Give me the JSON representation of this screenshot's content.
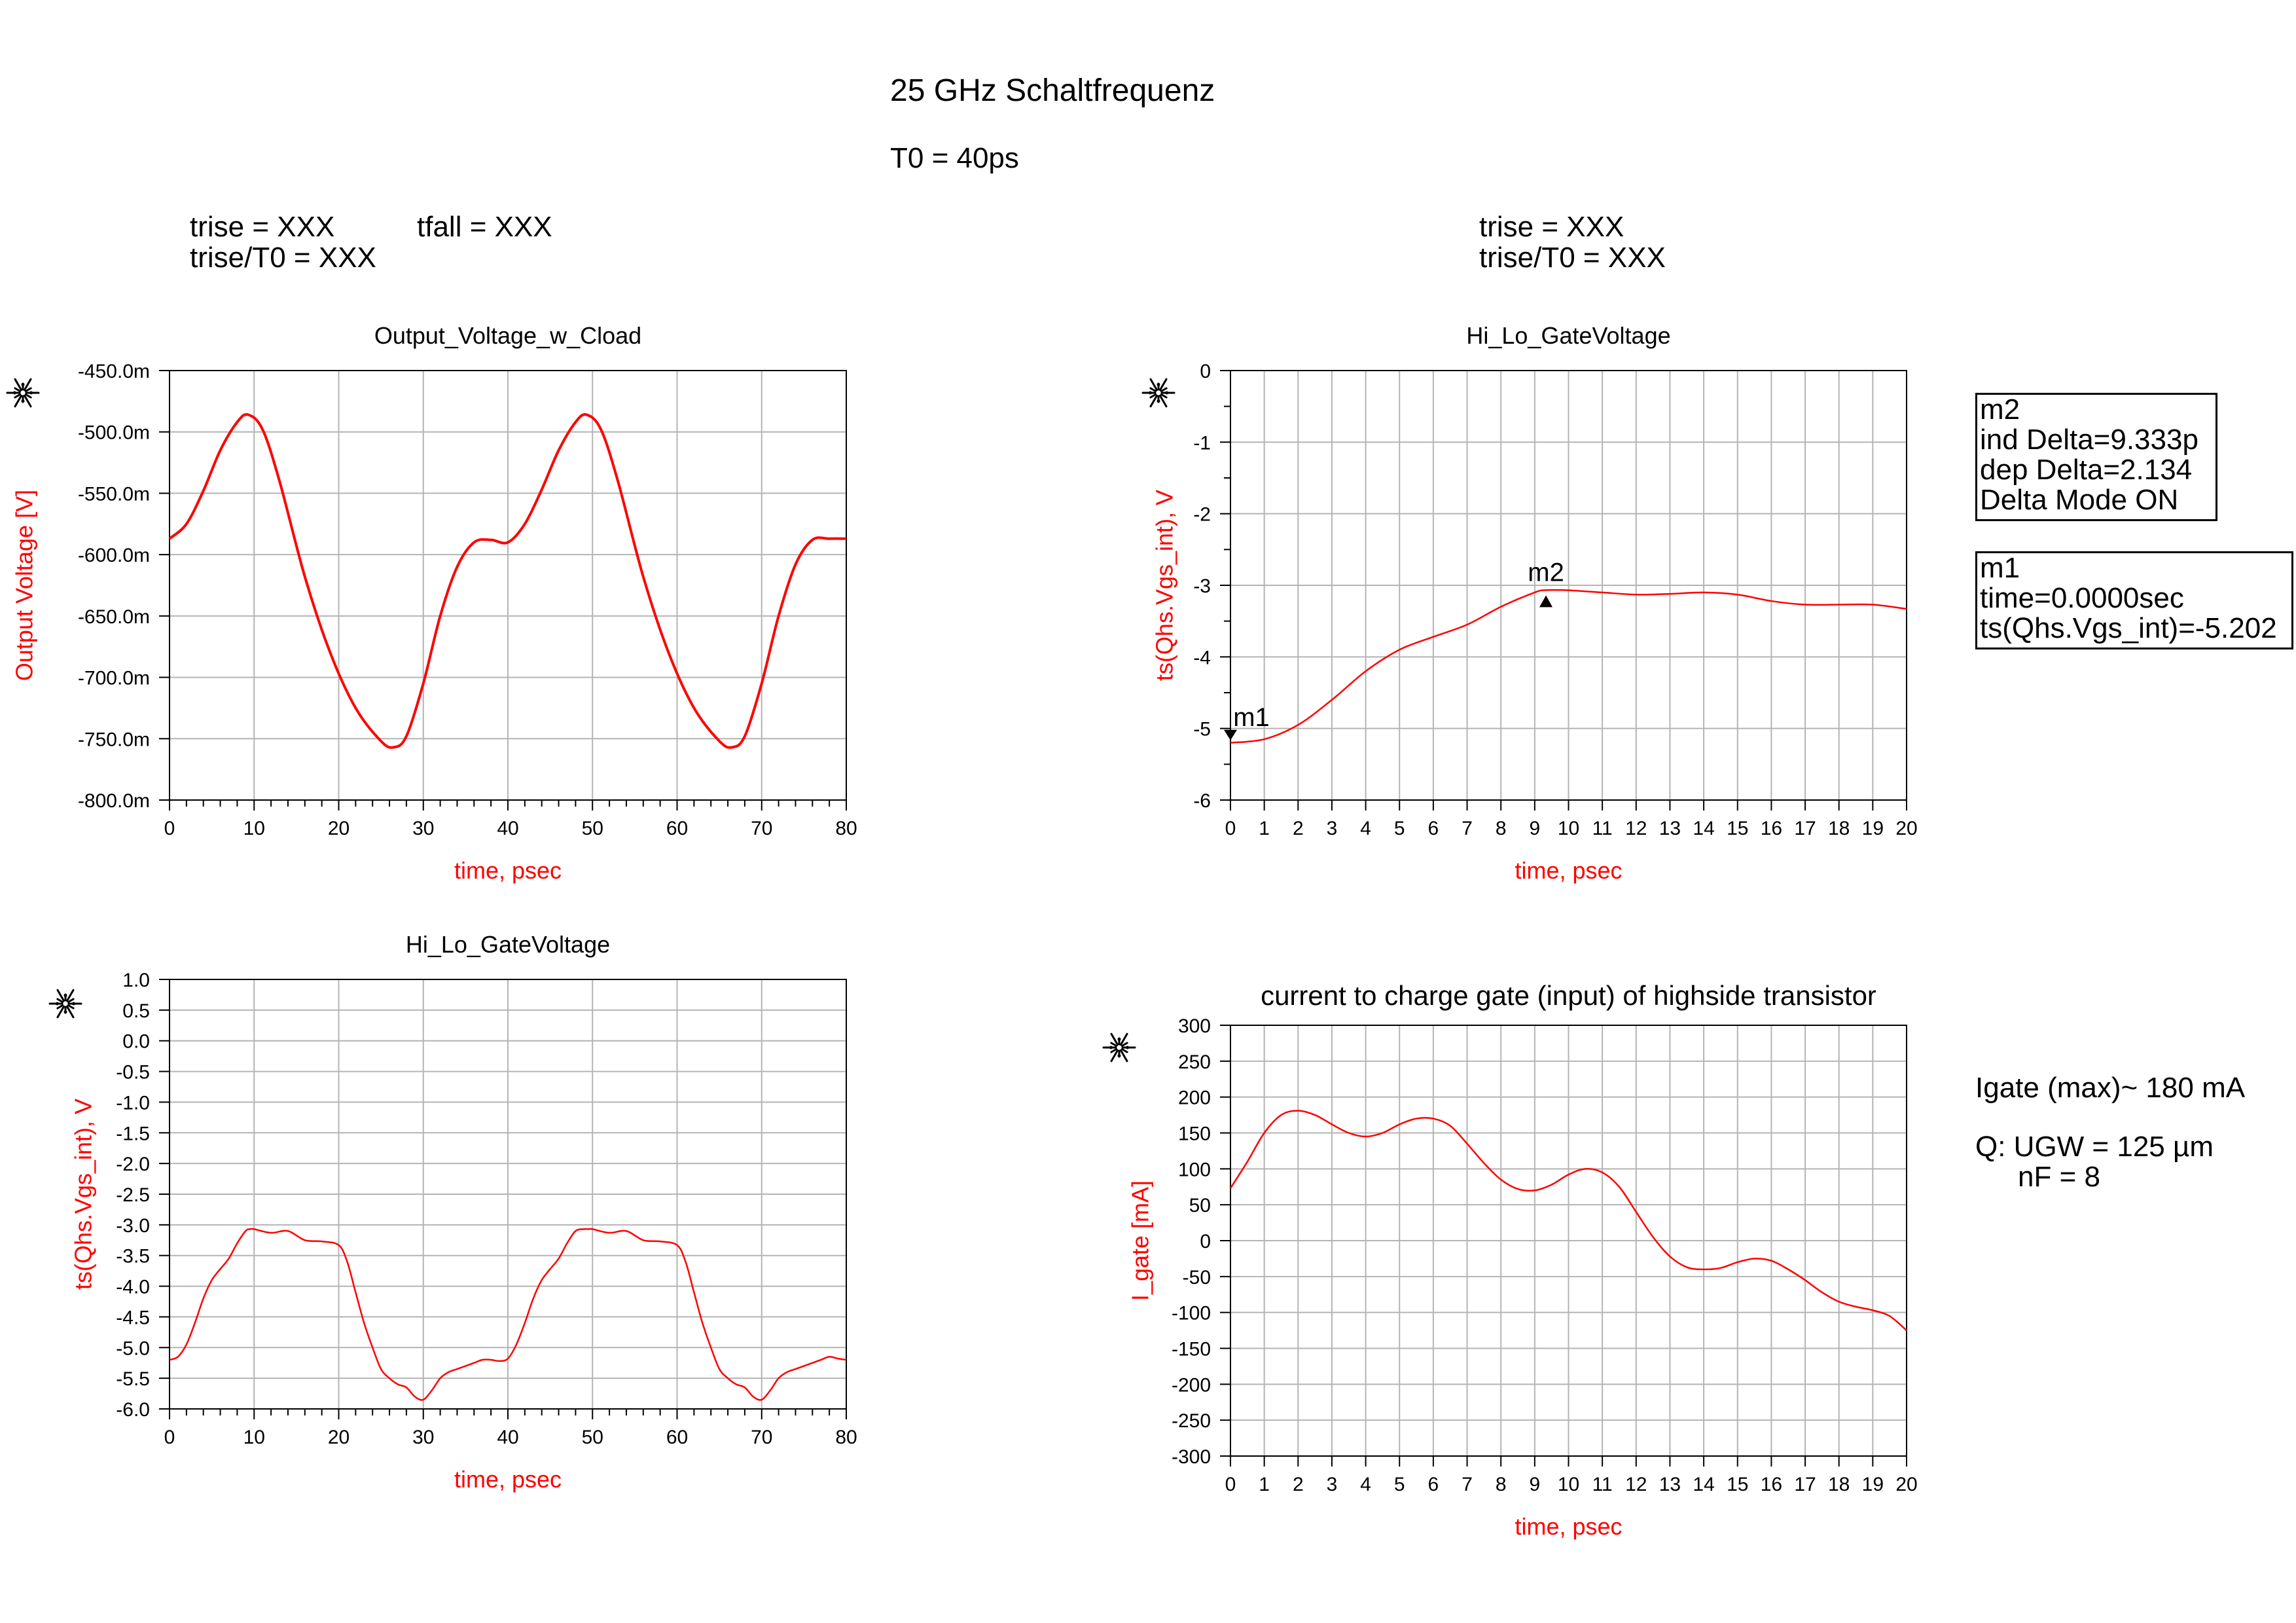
{
  "page": {
    "title": "25 GHz Schaltfrequenz",
    "subtitle": "T0 = 40ps",
    "left_params": {
      "trise": "trise = XXX",
      "tfall": "tfall = XXX",
      "ratio": "trise/T0 = XXX"
    },
    "right_params": {
      "trise": "trise = XXX",
      "ratio": "trise/T0 = XXX"
    },
    "marker_m2": [
      "m2",
      "ind Delta=9.333p",
      "dep Delta=2.134",
      "Delta Mode ON"
    ],
    "marker_m1": [
      "m1",
      "time=0.0000sec",
      "ts(Qhs.Vgs_int)=-5.202"
    ],
    "gate_note": {
      "igate": "Igate (max)~ 180 mA",
      "ugw": "Q: UGW = 125 µm",
      "nf": "nF = 8"
    },
    "colors": {
      "trace": "#ff0000",
      "axis": "#000000",
      "grid": "#b4b4b4",
      "label": "#ff0000"
    },
    "icon": "agilent-starburst-icon"
  },
  "chart_data": [
    {
      "id": "output-voltage",
      "type": "line",
      "title": "Output_Voltage_w_Cload",
      "xlabel": "time, psec",
      "ylabel": "Output Voltage [V]",
      "xlim": [
        0,
        80
      ],
      "ylim": [
        -800,
        -450
      ],
      "xticks": [
        0,
        10,
        20,
        30,
        40,
        50,
        60,
        70,
        80
      ],
      "yticks": [
        -800,
        -750,
        -700,
        -650,
        -600,
        -550,
        -500,
        -450
      ],
      "ytick_labels": [
        "-800.0m",
        "-750.0m",
        "-700.0m",
        "-650.0m",
        "-600.0m",
        "-550.0m",
        "-500.0m",
        "-450.0m"
      ],
      "x_minor_per_major": 5,
      "y_minor_per_major": 1,
      "series": [
        {
          "x": [
            0,
            2,
            4,
            6,
            8,
            9.3,
            11,
            13,
            16,
            19,
            22,
            25,
            26.5,
            28,
            30,
            32,
            34,
            36,
            38,
            40,
            42,
            44,
            46,
            48,
            49.3,
            51,
            53,
            56,
            59,
            62,
            65,
            66.5,
            68,
            70,
            72,
            74,
            76,
            78,
            80
          ],
          "y": [
            -587,
            -575,
            -548,
            -515,
            -492,
            -486,
            -498,
            -540,
            -618,
            -680,
            -725,
            -752,
            -757,
            -748,
            -705,
            -650,
            -610,
            -590,
            -588,
            -590,
            -575,
            -547,
            -515,
            -492,
            -486,
            -498,
            -540,
            -618,
            -680,
            -725,
            -752,
            -757,
            -748,
            -705,
            -650,
            -608,
            -588,
            -587,
            -587
          ]
        }
      ]
    },
    {
      "id": "gate-voltage-zoom",
      "type": "line",
      "title": "Hi_Lo_GateVoltage",
      "xlabel": "time, psec",
      "ylabel": "ts(Qhs.Vgs_int), V",
      "xlim": [
        0,
        20
      ],
      "ylim": [
        -6,
        0
      ],
      "xticks": [
        0,
        1,
        2,
        3,
        4,
        5,
        6,
        7,
        8,
        9,
        10,
        11,
        12,
        13,
        14,
        15,
        16,
        17,
        18,
        19,
        20
      ],
      "yticks": [
        -6,
        -5,
        -4,
        -3,
        -2,
        -1,
        0
      ],
      "ytick_labels": [
        "-6",
        "-5",
        "-4",
        "-3",
        "-2",
        "-1",
        "0"
      ],
      "x_minor_per_major": 1,
      "y_minor_per_major": 2,
      "markers": [
        {
          "name": "m1",
          "x": 0,
          "y": -5.202,
          "dir": "down"
        },
        {
          "name": "m2",
          "x": 9.333,
          "y": -3.068,
          "dir": "up"
        }
      ],
      "series": [
        {
          "x": [
            0,
            1,
            2,
            3,
            4,
            5,
            6,
            7,
            8,
            9,
            9.333,
            10,
            11,
            12,
            13,
            14,
            15,
            16,
            17,
            18,
            19,
            20
          ],
          "y": [
            -5.2,
            -5.15,
            -4.95,
            -4.6,
            -4.2,
            -3.9,
            -3.72,
            -3.55,
            -3.3,
            -3.1,
            -3.068,
            -3.07,
            -3.1,
            -3.13,
            -3.12,
            -3.1,
            -3.13,
            -3.22,
            -3.27,
            -3.27,
            -3.27,
            -3.33
          ]
        }
      ]
    },
    {
      "id": "gate-voltage-full",
      "type": "line",
      "title": "Hi_Lo_GateVoltage",
      "xlabel": "time, psec",
      "ylabel": "ts(Qhs.Vgs_int), V",
      "xlim": [
        0,
        80
      ],
      "ylim": [
        -6,
        1
      ],
      "xticks": [
        0,
        10,
        20,
        30,
        40,
        50,
        60,
        70,
        80
      ],
      "yticks": [
        -6,
        -5.5,
        -5,
        -4.5,
        -4,
        -3.5,
        -3,
        -2.5,
        -2,
        -1.5,
        -1,
        -0.5,
        0,
        0.5,
        1
      ],
      "ytick_labels": [
        "-6.0",
        "-5.5",
        "-5.0",
        "-4.5",
        "-4.0",
        "-3.5",
        "-3.0",
        "-2.5",
        "-2.0",
        "-1.5",
        "-1.0",
        "-0.5",
        "0.0",
        "0.5",
        "1.0"
      ],
      "x_minor_per_major": 5,
      "y_minor_per_major": 1,
      "series": [
        {
          "x": [
            0,
            1,
            2,
            3,
            4,
            5,
            6,
            7,
            8,
            9,
            9.5,
            10,
            12,
            14,
            16,
            18,
            20,
            21,
            22,
            23,
            24,
            25,
            26,
            27,
            28,
            29,
            30,
            31,
            32,
            33,
            34,
            35,
            36,
            37,
            38,
            39,
            40,
            41,
            42,
            43,
            44,
            45,
            46,
            47,
            48,
            49,
            49.5,
            50,
            52,
            54,
            56,
            58,
            60,
            61,
            62,
            63,
            64,
            65,
            66,
            67,
            68,
            69,
            70,
            71,
            72,
            73,
            74,
            75,
            76,
            77,
            78,
            79,
            80
          ],
          "y": [
            -5.2,
            -5.15,
            -4.95,
            -4.6,
            -4.2,
            -3.9,
            -3.72,
            -3.55,
            -3.3,
            -3.1,
            -3.07,
            -3.07,
            -3.13,
            -3.1,
            -3.25,
            -3.27,
            -3.33,
            -3.6,
            -4.1,
            -4.6,
            -5.0,
            -5.35,
            -5.5,
            -5.6,
            -5.65,
            -5.8,
            -5.85,
            -5.7,
            -5.5,
            -5.4,
            -5.35,
            -5.3,
            -5.25,
            -5.2,
            -5.2,
            -5.22,
            -5.18,
            -4.95,
            -4.6,
            -4.2,
            -3.9,
            -3.72,
            -3.55,
            -3.3,
            -3.1,
            -3.07,
            -3.07,
            -3.07,
            -3.13,
            -3.1,
            -3.25,
            -3.27,
            -3.33,
            -3.6,
            -4.1,
            -4.6,
            -5.0,
            -5.35,
            -5.5,
            -5.6,
            -5.65,
            -5.8,
            -5.85,
            -5.7,
            -5.5,
            -5.4,
            -5.35,
            -5.3,
            -5.25,
            -5.2,
            -5.15,
            -5.18,
            -5.2
          ]
        }
      ]
    },
    {
      "id": "gate-current",
      "type": "line",
      "title": "current to charge gate (input) of highside transistor",
      "xlabel": "time, psec",
      "ylabel": "I_gate [mA]",
      "xlim": [
        0,
        20
      ],
      "ylim": [
        -300,
        300
      ],
      "xticks": [
        0,
        1,
        2,
        3,
        4,
        5,
        6,
        7,
        8,
        9,
        10,
        11,
        12,
        13,
        14,
        15,
        16,
        17,
        18,
        19,
        20
      ],
      "yticks": [
        -300,
        -250,
        -200,
        -150,
        -100,
        -50,
        0,
        50,
        100,
        150,
        200,
        250,
        300
      ],
      "ytick_labels": [
        "-300",
        "-250",
        "-200",
        "-150",
        "-100",
        "-50",
        "0",
        "50",
        "100",
        "150",
        "200",
        "250",
        "300"
      ],
      "x_minor_per_major": 1,
      "y_minor_per_major": 1,
      "series": [
        {
          "x": [
            0,
            0.5,
            1,
            1.5,
            2,
            2.5,
            3,
            3.5,
            4,
            4.5,
            5,
            5.5,
            6,
            6.5,
            7,
            7.5,
            8,
            8.5,
            9,
            9.5,
            10,
            10.5,
            11,
            11.5,
            12,
            12.5,
            13,
            13.5,
            14,
            14.5,
            15,
            15.5,
            16,
            16.5,
            17,
            17.5,
            18,
            18.5,
            19,
            19.5,
            20
          ],
          "y": [
            73,
            110,
            150,
            175,
            181,
            175,
            162,
            150,
            145,
            150,
            162,
            170,
            170,
            160,
            135,
            108,
            85,
            72,
            70,
            78,
            92,
            100,
            95,
            75,
            40,
            5,
            -22,
            -37,
            -40,
            -38,
            -30,
            -25,
            -28,
            -40,
            -55,
            -72,
            -85,
            -92,
            -97,
            -105,
            -125
          ]
        }
      ]
    }
  ]
}
